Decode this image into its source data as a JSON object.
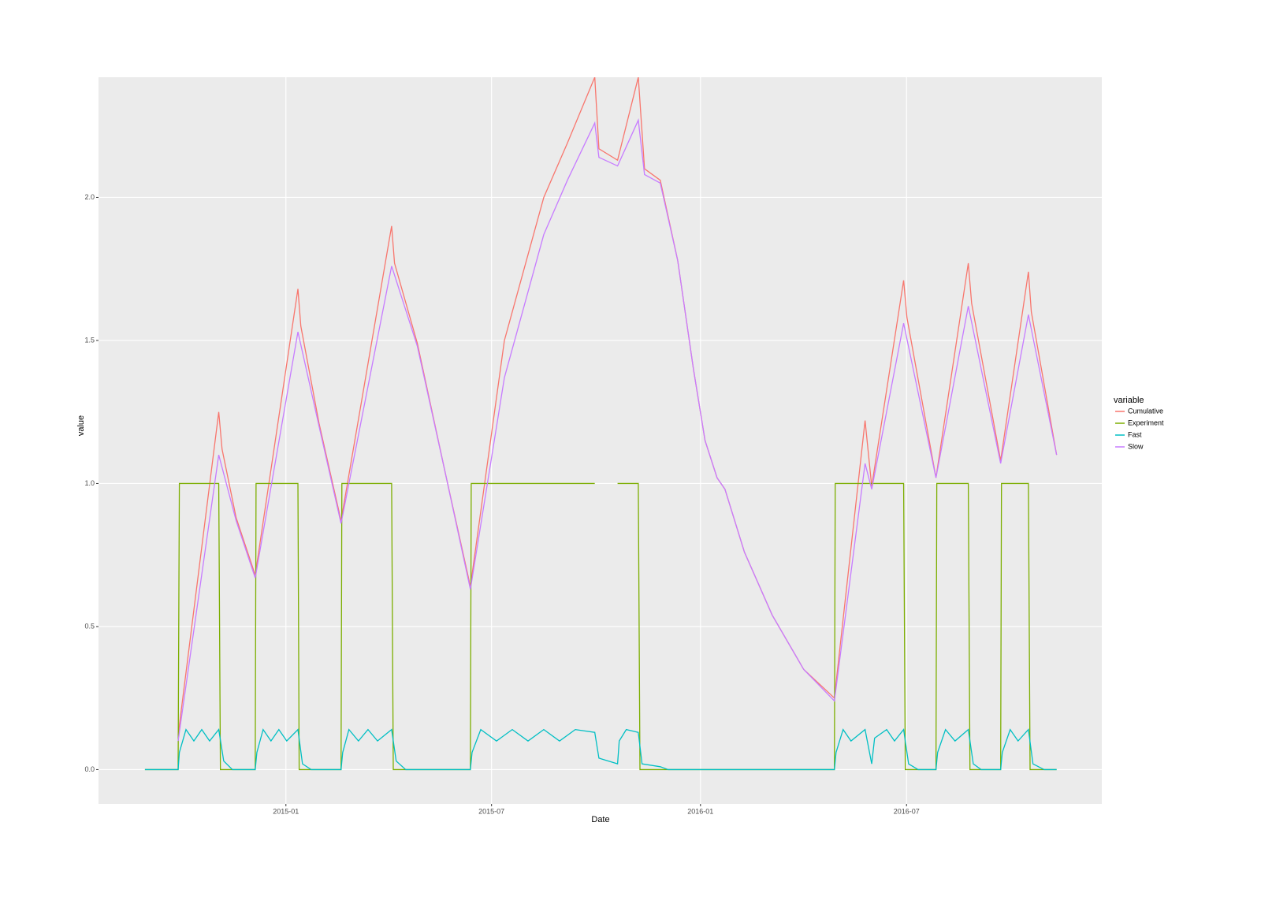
{
  "chart_data": {
    "type": "line",
    "x_label": "Date",
    "y_label": "value",
    "legend_title": "variable",
    "legend": "right",
    "grid": true,
    "xlim": [
      2014.548,
      2016.968
    ],
    "ylim": [
      -0.12,
      2.42
    ],
    "xticks": [
      {
        "value": 2015.0,
        "label": "2015-01"
      },
      {
        "value": 2015.496,
        "label": "2015-07"
      },
      {
        "value": 2016.0,
        "label": "2016-01"
      },
      {
        "value": 2016.497,
        "label": "2016-07"
      }
    ],
    "yticks": [
      {
        "value": 0,
        "label": "0.0"
      },
      0.5,
      {
        "value": 1,
        "label": "1.0"
      },
      1.5,
      {
        "value": 2,
        "label": "2.0"
      }
    ],
    "series": [
      {
        "name": "Cumulative",
        "color": "#F8766D",
        "x": [
          2014.74,
          2014.838,
          2014.846,
          2014.88,
          2014.926,
          2015.029,
          2015.036,
          2015.08,
          2015.133,
          2015.255,
          2015.262,
          2015.317,
          2015.384,
          2015.445,
          2015.527,
          2015.622,
          2015.679,
          2015.745,
          2015.755,
          2015.8,
          2015.85,
          2015.865,
          2015.903,
          2015.945,
          2015.983,
          2016.011,
          2016.04,
          2016.059,
          2016.106,
          2016.173,
          2016.249,
          2016.323,
          2016.397,
          2016.413,
          2016.49,
          2016.498,
          2016.568,
          2016.646,
          2016.654,
          2016.724,
          2016.791,
          2016.798,
          2016.859
        ],
        "values": [
          0.12,
          1.25,
          1.12,
          0.88,
          0.68,
          1.68,
          1.55,
          1.21,
          0.87,
          1.9,
          1.77,
          1.49,
          1.04,
          0.64,
          1.5,
          2.0,
          2.19,
          2.42,
          2.17,
          2.13,
          2.42,
          2.1,
          2.06,
          1.78,
          1.4,
          1.15,
          1.02,
          0.98,
          0.76,
          0.54,
          0.35,
          0.25,
          1.22,
          0.99,
          1.71,
          1.58,
          1.02,
          1.77,
          1.63,
          1.08,
          1.74,
          1.6,
          1.1
        ]
      },
      {
        "name": "Experiment",
        "color": "#7CAE00",
        "x": [
          2014.66,
          2014.74,
          2014.743,
          2014.838,
          2014.842,
          2014.926,
          2014.928,
          2015.029,
          2015.032,
          2015.133,
          2015.135,
          2015.255,
          2015.259,
          2015.445,
          2015.447,
          2015.745,
          2015.774,
          2015.8,
          2015.85,
          2015.854,
          2016.323,
          2016.325,
          2016.49,
          2016.494,
          2016.568,
          2016.57,
          2016.646,
          2016.65,
          2016.724,
          2016.726,
          2016.791,
          2016.795,
          2016.859
        ],
        "values": [
          0,
          0,
          1,
          1,
          0,
          0,
          1,
          1,
          0,
          0,
          1,
          1,
          0,
          0,
          1,
          1,
          null,
          1,
          1,
          0,
          0,
          1,
          1,
          0,
          0,
          1,
          1,
          0,
          0,
          1,
          1,
          0,
          0
        ]
      },
      {
        "name": "Fast",
        "color": "#00BFC4",
        "x": [
          2014.66,
          2014.74,
          2014.743,
          2014.759,
          2014.778,
          2014.797,
          2014.816,
          2014.838,
          2014.85,
          2014.871,
          2014.926,
          2014.93,
          2014.945,
          2014.964,
          2014.983,
          2015.002,
          2015.029,
          2015.04,
          2015.061,
          2015.133,
          2015.137,
          2015.152,
          2015.175,
          2015.198,
          2015.221,
          2015.255,
          2015.266,
          2015.289,
          2015.445,
          2015.449,
          2015.47,
          2015.508,
          2015.546,
          2015.584,
          2015.622,
          2015.66,
          2015.698,
          2015.745,
          2015.755,
          2015.8,
          2015.804,
          2015.821,
          2015.85,
          2015.859,
          2015.903,
          2015.922,
          2016.323,
          2016.327,
          2016.344,
          2016.363,
          2016.397,
          2016.413,
          2016.42,
          2016.449,
          2016.468,
          2016.49,
          2016.502,
          2016.525,
          2016.568,
          2016.572,
          2016.591,
          2016.614,
          2016.646,
          2016.658,
          2016.677,
          2016.724,
          2016.728,
          2016.747,
          2016.766,
          2016.791,
          2016.802,
          2016.829,
          2016.859
        ],
        "values": [
          0,
          0,
          0.06,
          0.14,
          0.1,
          0.14,
          0.1,
          0.14,
          0.03,
          0,
          0,
          0.06,
          0.14,
          0.1,
          0.14,
          0.1,
          0.14,
          0.02,
          0,
          0,
          0.06,
          0.14,
          0.1,
          0.14,
          0.1,
          0.14,
          0.03,
          0,
          0,
          0.06,
          0.14,
          0.1,
          0.14,
          0.1,
          0.14,
          0.1,
          0.14,
          0.13,
          0.04,
          0.02,
          0.1,
          0.14,
          0.13,
          0.02,
          0.01,
          0,
          0,
          0.06,
          0.14,
          0.1,
          0.14,
          0.02,
          0.11,
          0.14,
          0.1,
          0.14,
          0.02,
          0,
          0,
          0.06,
          0.14,
          0.1,
          0.14,
          0.02,
          0,
          0,
          0.06,
          0.14,
          0.1,
          0.14,
          0.02,
          0,
          0
        ]
      },
      {
        "name": "Slow",
        "color": "#C77CFF",
        "x": [
          2014.74,
          2014.838,
          2014.88,
          2014.926,
          2015.029,
          2015.08,
          2015.133,
          2015.255,
          2015.317,
          2015.384,
          2015.445,
          2015.527,
          2015.622,
          2015.679,
          2015.745,
          2015.755,
          2015.8,
          2015.85,
          2015.865,
          2015.903,
          2015.945,
          2015.983,
          2016.011,
          2016.04,
          2016.059,
          2016.106,
          2016.173,
          2016.249,
          2016.323,
          2016.397,
          2016.413,
          2016.49,
          2016.568,
          2016.646,
          2016.724,
          2016.791,
          2016.859
        ],
        "values": [
          0.1,
          1.1,
          0.87,
          0.67,
          1.53,
          1.2,
          0.86,
          1.76,
          1.48,
          1.04,
          0.63,
          1.37,
          1.87,
          2.06,
          2.26,
          2.14,
          2.11,
          2.27,
          2.08,
          2.05,
          1.78,
          1.4,
          1.15,
          1.02,
          0.98,
          0.76,
          0.54,
          0.35,
          0.24,
          1.07,
          0.98,
          1.56,
          1.02,
          1.62,
          1.07,
          1.59,
          1.1
        ]
      }
    ]
  }
}
